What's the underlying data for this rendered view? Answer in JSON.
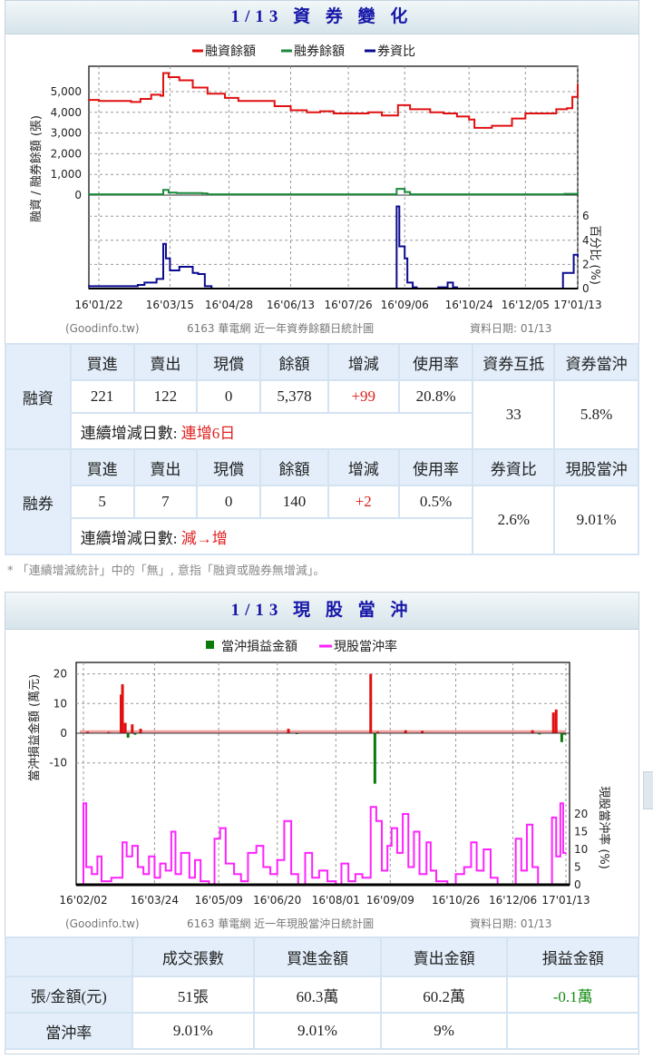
{
  "margin_section": {
    "title": "1/13 資 券 變 化",
    "chart": {
      "type": "line",
      "legend": [
        "融資餘額",
        "融券餘額",
        "券資比"
      ],
      "ylabel_left": "融資 / 融券餘額 (張)",
      "ylabel_right": "百分比 (%)",
      "y_left_ticks": [
        "0",
        "1,000",
        "2,000",
        "3,000",
        "4,000",
        "5,000"
      ],
      "y_right_ticks": [
        "0",
        "2",
        "4",
        "6"
      ],
      "x_ticks": [
        {
          "label": "16'01/22",
          "date": "2016-01-22"
        },
        {
          "label": "16'03/15",
          "date": "2016-03-15"
        },
        {
          "label": "16'04/28",
          "date": "2016-04-28"
        },
        {
          "label": "16'06/13",
          "date": "2016-06-13"
        },
        {
          "label": "16'07/26",
          "date": "2016-07-26"
        },
        {
          "label": "16'09/06",
          "date": "2016-09-06"
        },
        {
          "label": "16'10/24",
          "date": "2016-10-24"
        },
        {
          "label": "16'12/05",
          "date": "2016-12-05"
        },
        {
          "label": "17'01/13",
          "date": "2017-01-13"
        }
      ],
      "footer_source": "(Goodinfo.tw)",
      "footer_title": "6163 華電網 近一年資券餘額日統計圖",
      "footer_date": "資料日期: 01/13",
      "colors": {
        "margin": "#e01010",
        "short": "#1a8a3a",
        "ratio": "#0a0a90"
      },
      "series_margin": [
        [
          "2016-01-14",
          4600
        ],
        [
          "2016-01-22",
          4550
        ],
        [
          "2016-02-15",
          4500
        ],
        [
          "2016-02-22",
          4650
        ],
        [
          "2016-03-01",
          4850
        ],
        [
          "2016-03-08",
          4800
        ],
        [
          "2016-03-10",
          5900
        ],
        [
          "2016-03-14",
          5700
        ],
        [
          "2016-03-22",
          5550
        ],
        [
          "2016-04-01",
          5200
        ],
        [
          "2016-04-12",
          4900
        ],
        [
          "2016-04-25",
          4700
        ],
        [
          "2016-05-05",
          4550
        ],
        [
          "2016-05-20",
          4550
        ],
        [
          "2016-06-01",
          4300
        ],
        [
          "2016-06-13",
          4100
        ],
        [
          "2016-06-25",
          4000
        ],
        [
          "2016-07-05",
          4050
        ],
        [
          "2016-07-15",
          3950
        ],
        [
          "2016-07-26",
          3950
        ],
        [
          "2016-08-10",
          4000
        ],
        [
          "2016-08-20",
          3850
        ],
        [
          "2016-08-29",
          3850
        ],
        [
          "2016-09-01",
          4350
        ],
        [
          "2016-09-10",
          4150
        ],
        [
          "2016-09-25",
          4000
        ],
        [
          "2016-10-05",
          3950
        ],
        [
          "2016-10-15",
          3800
        ],
        [
          "2016-10-24",
          3650
        ],
        [
          "2016-10-28",
          3250
        ],
        [
          "2016-11-10",
          3350
        ],
        [
          "2016-11-25",
          3700
        ],
        [
          "2016-12-05",
          3950
        ],
        [
          "2016-12-20",
          3950
        ],
        [
          "2016-12-28",
          4150
        ],
        [
          "2017-01-05",
          4200
        ],
        [
          "2017-01-09",
          4750
        ],
        [
          "2017-01-13",
          5378
        ]
      ],
      "series_short": [
        [
          "2016-01-14",
          40
        ],
        [
          "2016-03-08",
          40
        ],
        [
          "2016-03-10",
          250
        ],
        [
          "2016-03-14",
          120
        ],
        [
          "2016-03-20",
          100
        ],
        [
          "2016-04-08",
          80
        ],
        [
          "2016-04-12",
          40
        ],
        [
          "2016-08-29",
          40
        ],
        [
          "2016-08-31",
          300
        ],
        [
          "2016-09-06",
          150
        ],
        [
          "2016-09-10",
          40
        ],
        [
          "2017-01-03",
          60
        ],
        [
          "2017-01-13",
          140
        ]
      ],
      "series_ratio": [
        [
          "2016-01-14",
          0.2
        ],
        [
          "2016-02-20",
          0.3
        ],
        [
          "2016-02-25",
          0.5
        ],
        [
          "2016-03-05",
          0.8
        ],
        [
          "2016-03-10",
          3.7
        ],
        [
          "2016-03-12",
          2.5
        ],
        [
          "2016-03-15",
          1.5
        ],
        [
          "2016-03-22",
          1.8
        ],
        [
          "2016-04-01",
          1.3
        ],
        [
          "2016-04-05",
          1.2
        ],
        [
          "2016-04-10",
          0.2
        ],
        [
          "2016-04-15",
          0
        ],
        [
          "2016-08-29",
          0
        ],
        [
          "2016-08-31",
          6.8
        ],
        [
          "2016-09-02",
          3.5
        ],
        [
          "2016-09-06",
          2.5
        ],
        [
          "2016-09-08",
          0.5
        ],
        [
          "2016-09-12",
          0.1
        ],
        [
          "2016-09-15",
          0
        ],
        [
          "2016-10-01",
          0.1
        ],
        [
          "2016-10-08",
          0.5
        ],
        [
          "2016-10-12",
          0.1
        ],
        [
          "2016-10-15",
          0
        ],
        [
          "2016-12-29",
          0
        ],
        [
          "2017-01-02",
          1.3
        ],
        [
          "2017-01-06",
          1.3
        ],
        [
          "2017-01-10",
          2.8
        ],
        [
          "2017-01-13",
          2.6
        ]
      ]
    },
    "margin_table": {
      "row_label_buy": "融資",
      "row_label_short": "融券",
      "headers_margin": [
        "買進",
        "賣出",
        "現償",
        "餘額",
        "增減",
        "使用率",
        "資券互抵",
        "資券當沖"
      ],
      "values_margin": [
        "221",
        "122",
        "0",
        "5,378",
        "+99",
        "20.8%",
        "33",
        "5.8%"
      ],
      "headers_short": [
        "買進",
        "賣出",
        "現償",
        "餘額",
        "增減",
        "使用率",
        "券資比",
        "現股當沖"
      ],
      "values_short": [
        "5",
        "7",
        "0",
        "140",
        "+2",
        "0.5%",
        "2.6%",
        "9.01%"
      ],
      "streak_label": "連續增減日數:",
      "streak_margin": "連增6日",
      "streak_short": "減→增"
    },
    "note": "* 「連續增減統計」中的「無」, 意指「融資或融券無增減」。"
  },
  "daytrade_section": {
    "title": "1/13 現 股 當 沖",
    "chart": {
      "type": "bar+line",
      "legend": [
        "當沖損益金額",
        "現股當沖率"
      ],
      "ylabel_left": "當沖損益金額 (萬元)",
      "ylabel_right": "現股當沖率 (%)",
      "y_left_ticks": [
        "-10",
        "0",
        "10",
        "20"
      ],
      "y_right_ticks": [
        "0",
        "5",
        "10",
        "15",
        "20"
      ],
      "x_ticks": [
        {
          "label": "16'02/02",
          "date": "2016-02-02"
        },
        {
          "label": "16'03/24",
          "date": "2016-03-24"
        },
        {
          "label": "16'05/09",
          "date": "2016-05-09"
        },
        {
          "label": "16'06/20",
          "date": "2016-06-20"
        },
        {
          "label": "16'08/01",
          "date": "2016-08-01"
        },
        {
          "label": "16'09/09",
          "date": "2016-09-09"
        },
        {
          "label": "16'10/26",
          "date": "2016-10-26"
        },
        {
          "label": "16'12/06",
          "date": "2016-12-06"
        },
        {
          "label": "17'01/13",
          "date": "2017-01-13"
        }
      ],
      "footer_source": "(Goodinfo.tw)",
      "footer_title": "6163 華電網 近一年現股當沖日統計圖",
      "footer_date": "資料日期: 01/13",
      "colors": {
        "profit": "#e01010",
        "loss": "#0a7a0a",
        "rate": "#ff22ff"
      },
      "bars": [
        [
          "2016-02-05",
          0.5
        ],
        [
          "2016-02-20",
          0.4
        ],
        [
          "2016-02-29",
          13
        ],
        [
          "2016-03-01",
          16.5
        ],
        [
          "2016-03-03",
          3.5
        ],
        [
          "2016-03-05",
          -1.5
        ],
        [
          "2016-03-08",
          3
        ],
        [
          "2016-03-10",
          -0.5
        ],
        [
          "2016-03-14",
          1.5
        ],
        [
          "2016-06-28",
          1.5
        ],
        [
          "2016-07-04",
          -0.3
        ],
        [
          "2016-08-26",
          20
        ],
        [
          "2016-08-29",
          -17
        ],
        [
          "2016-08-31",
          0.5
        ],
        [
          "2016-09-20",
          1
        ],
        [
          "2016-10-02",
          0.8
        ],
        [
          "2016-12-20",
          1
        ],
        [
          "2016-12-25",
          -0.4
        ],
        [
          "2017-01-04",
          7
        ],
        [
          "2017-01-06",
          8
        ],
        [
          "2017-01-10",
          -3
        ],
        [
          "2017-01-12",
          -0.5
        ]
      ],
      "rate": [
        [
          "2016-01-29",
          0
        ],
        [
          "2016-02-02",
          23
        ],
        [
          "2016-02-04",
          5
        ],
        [
          "2016-02-08",
          3
        ],
        [
          "2016-02-12",
          8
        ],
        [
          "2016-02-15",
          1
        ],
        [
          "2016-02-22",
          2
        ],
        [
          "2016-03-01",
          12
        ],
        [
          "2016-03-04",
          8
        ],
        [
          "2016-03-08",
          11
        ],
        [
          "2016-03-12",
          5
        ],
        [
          "2016-03-16",
          3
        ],
        [
          "2016-03-20",
          8
        ],
        [
          "2016-03-24",
          2
        ],
        [
          "2016-03-28",
          6
        ],
        [
          "2016-04-01",
          4
        ],
        [
          "2016-04-05",
          15
        ],
        [
          "2016-04-08",
          3
        ],
        [
          "2016-04-12",
          9
        ],
        [
          "2016-04-18",
          2
        ],
        [
          "2016-04-22",
          7
        ],
        [
          "2016-04-26",
          1
        ],
        [
          "2016-05-02",
          0
        ],
        [
          "2016-05-06",
          13
        ],
        [
          "2016-05-10",
          16
        ],
        [
          "2016-05-14",
          6
        ],
        [
          "2016-05-20",
          3
        ],
        [
          "2016-05-25",
          1
        ],
        [
          "2016-05-30",
          9
        ],
        [
          "2016-06-05",
          11
        ],
        [
          "2016-06-10",
          5
        ],
        [
          "2016-06-15",
          3
        ],
        [
          "2016-06-20",
          7
        ],
        [
          "2016-06-25",
          18
        ],
        [
          "2016-06-30",
          3
        ],
        [
          "2016-07-05",
          0
        ],
        [
          "2016-07-10",
          9
        ],
        [
          "2016-07-15",
          2
        ],
        [
          "2016-07-20",
          4
        ],
        [
          "2016-07-26",
          1
        ],
        [
          "2016-08-01",
          0
        ],
        [
          "2016-08-05",
          6
        ],
        [
          "2016-08-10",
          1
        ],
        [
          "2016-08-15",
          3
        ],
        [
          "2016-08-20",
          2
        ],
        [
          "2016-08-26",
          22
        ],
        [
          "2016-08-30",
          18
        ],
        [
          "2016-09-03",
          4
        ],
        [
          "2016-09-07",
          11
        ],
        [
          "2016-09-10",
          16
        ],
        [
          "2016-09-14",
          9
        ],
        [
          "2016-09-18",
          20
        ],
        [
          "2016-09-22",
          5
        ],
        [
          "2016-09-26",
          15
        ],
        [
          "2016-09-30",
          3
        ],
        [
          "2016-10-05",
          12
        ],
        [
          "2016-10-08",
          4
        ],
        [
          "2016-10-12",
          1
        ],
        [
          "2016-10-20",
          0
        ],
        [
          "2016-10-26",
          3
        ],
        [
          "2016-11-01",
          5
        ],
        [
          "2016-11-06",
          12
        ],
        [
          "2016-11-10",
          4
        ],
        [
          "2016-11-15",
          10
        ],
        [
          "2016-11-20",
          2
        ],
        [
          "2016-11-25",
          0
        ],
        [
          "2016-12-06",
          0
        ],
        [
          "2016-12-08",
          13
        ],
        [
          "2016-12-12",
          4
        ],
        [
          "2016-12-16",
          17
        ],
        [
          "2016-12-20",
          5
        ],
        [
          "2016-12-24",
          0
        ],
        [
          "2016-12-29",
          0
        ],
        [
          "2017-01-03",
          19
        ],
        [
          "2017-01-06",
          8
        ],
        [
          "2017-01-09",
          23
        ],
        [
          "2017-01-11",
          9
        ],
        [
          "2017-01-13",
          9.01
        ]
      ]
    },
    "table": {
      "headers": [
        "",
        "成交張數",
        "買進金額",
        "賣出金額",
        "損益金額"
      ],
      "row1": [
        "張/金額(元)",
        "51張",
        "60.3萬",
        "60.2萬",
        "-0.1萬"
      ],
      "row2": [
        "當沖率",
        "9.01%",
        "9.01%",
        "9%",
        ""
      ]
    }
  }
}
